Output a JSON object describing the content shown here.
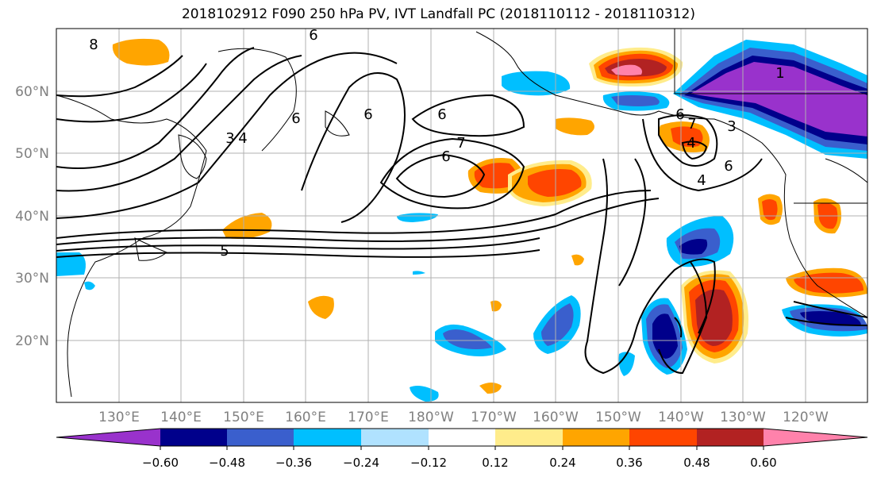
{
  "title": "2018102912 F090 250 hPa PV, IVT Landfall PC (2018110112 - 2018110312)",
  "map": {
    "lon_labels": [
      "130°E",
      "140°E",
      "150°E",
      "160°E",
      "170°E",
      "180°W",
      "170°W",
      "160°W",
      "150°W",
      "140°W",
      "130°W",
      "120°W"
    ],
    "lat_labels": [
      "60°N",
      "50°N",
      "40°N",
      "30°N",
      "20°N"
    ],
    "contour_labels": [
      "8",
      "6",
      "6",
      "6",
      "6",
      "7",
      "6",
      "5",
      "6",
      "7",
      "4",
      "3",
      "6",
      "1",
      "4",
      "3",
      "4"
    ],
    "axis_label_color": "#808080"
  },
  "colorbar": {
    "tick_labels": [
      "−0.60",
      "−0.48",
      "−0.36",
      "−0.24",
      "−0.12",
      "0.12",
      "0.24",
      "0.36",
      "0.48",
      "0.60"
    ],
    "colors": [
      "#9932cc",
      "#00008b",
      "#3a5fcd",
      "#00bfff",
      "#b0e2ff",
      "#ffffff",
      "#ffec8b",
      "#ffa500",
      "#ff4500",
      "#b22222",
      "#ff82ab"
    ]
  }
}
